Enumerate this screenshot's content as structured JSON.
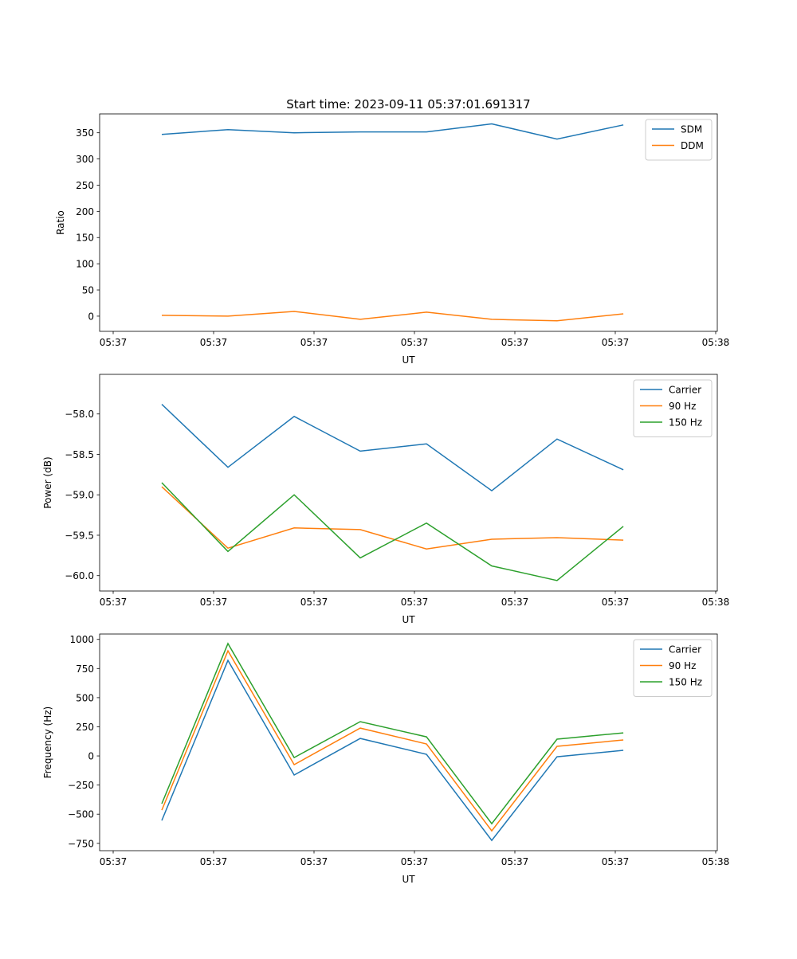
{
  "figure_title": "Start time: 2023-09-11 05:37:01.691317",
  "chart_data": [
    {
      "type": "line",
      "title": "Start time: 2023-09-11 05:37:01.691317",
      "xlabel": "UT",
      "ylabel": "Ratio",
      "x_unit": "seconds after 05:37:00",
      "x": [
        4.84,
        11.43,
        18.02,
        24.6,
        31.2,
        37.7,
        44.2,
        50.8
      ],
      "xlim": [
        -1.35,
        60.16
      ],
      "xticks": [
        0,
        10,
        20,
        30,
        40,
        50,
        60
      ],
      "xtick_labels": [
        "05:37",
        "05:37",
        "05:37",
        "05:37",
        "05:37",
        "05:37",
        "05:38"
      ],
      "ylim": [
        -29,
        386
      ],
      "yticks": [
        0,
        50,
        100,
        150,
        200,
        250,
        300,
        350
      ],
      "ytick_labels": [
        "0",
        "50",
        "100",
        "150",
        "200",
        "250",
        "300",
        "350"
      ],
      "legend_position": "top-right",
      "series": [
        {
          "name": "SDM",
          "color": "#1f77b4",
          "values": [
            347,
            356,
            350,
            351.6,
            351.6,
            367,
            338,
            365
          ]
        },
        {
          "name": "DDM",
          "color": "#ff7f0e",
          "values": [
            1.5,
            0,
            9,
            -6,
            7.6,
            -6,
            -9,
            4.5
          ]
        }
      ]
    },
    {
      "type": "line",
      "xlabel": "UT",
      "ylabel": "Power (dB)",
      "x_unit": "seconds after 05:37:00",
      "x": [
        4.84,
        11.43,
        18.02,
        24.6,
        31.2,
        37.7,
        44.2,
        50.8
      ],
      "xlim": [
        -1.35,
        60.16
      ],
      "xticks": [
        0,
        10,
        20,
        30,
        40,
        50,
        60
      ],
      "xtick_labels": [
        "05:37",
        "05:37",
        "05:37",
        "05:37",
        "05:37",
        "05:37",
        "05:38"
      ],
      "ylim": [
        -60.19,
        -57.51
      ],
      "yticks": [
        -60.0,
        -59.5,
        -59.0,
        -58.5,
        -58.0
      ],
      "ytick_labels": [
        "−60.0",
        "−59.5",
        "−59.0",
        "−58.5",
        "−58.0"
      ],
      "legend_position": "top-right",
      "series": [
        {
          "name": "Carrier",
          "color": "#1f77b4",
          "values": [
            -57.88,
            -58.66,
            -58.03,
            -58.46,
            -58.37,
            -58.95,
            -58.31,
            -58.69
          ]
        },
        {
          "name": "90 Hz",
          "color": "#ff7f0e",
          "values": [
            -58.9,
            -59.66,
            -59.41,
            -59.43,
            -59.67,
            -59.55,
            -59.53,
            -59.56
          ]
        },
        {
          "name": "150 Hz",
          "color": "#2ca02c",
          "values": [
            -58.85,
            -59.7,
            -59.0,
            -59.78,
            -59.35,
            -59.88,
            -60.06,
            -59.39
          ]
        }
      ]
    },
    {
      "type": "line",
      "xlabel": "UT",
      "ylabel": "Frequency (Hz)",
      "x_unit": "seconds after 05:37:00",
      "x": [
        4.84,
        11.43,
        18.02,
        24.6,
        31.2,
        37.7,
        44.2,
        50.8
      ],
      "xlim": [
        -1.35,
        60.16
      ],
      "xticks": [
        0,
        10,
        20,
        30,
        40,
        50,
        60
      ],
      "xtick_labels": [
        "05:37",
        "05:37",
        "05:37",
        "05:37",
        "05:37",
        "05:37",
        "05:38"
      ],
      "ylim": [
        -813,
        1046
      ],
      "yticks": [
        -750,
        -500,
        -250,
        0,
        250,
        500,
        750,
        1000
      ],
      "ytick_labels": [
        "−750",
        "−500",
        "−250",
        "0",
        "250",
        "500",
        "750",
        "1000"
      ],
      "legend_position": "top-right",
      "series": [
        {
          "name": "Carrier",
          "color": "#1f77b4",
          "values": [
            -554,
            820,
            -164,
            150,
            14,
            -725,
            -7,
            48
          ]
        },
        {
          "name": "90 Hz",
          "color": "#ff7f0e",
          "values": [
            -465,
            902,
            -75,
            239,
            103,
            -643,
            82,
            137
          ]
        },
        {
          "name": "150 Hz",
          "color": "#2ca02c",
          "values": [
            -410,
            964,
            -14,
            294,
            164,
            -581,
            144,
            198
          ]
        }
      ]
    }
  ]
}
